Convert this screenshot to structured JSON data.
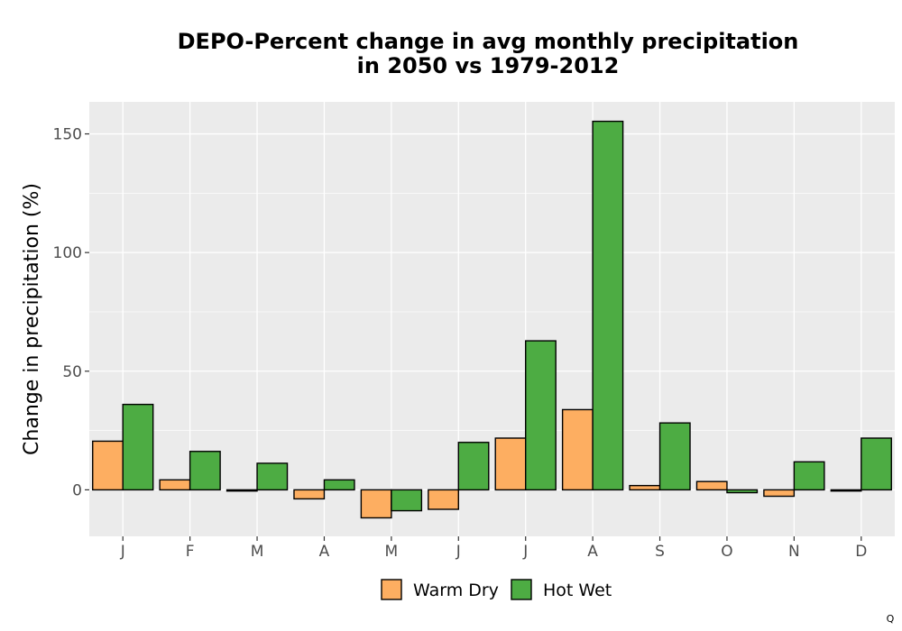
{
  "chart_data": {
    "type": "bar",
    "title_line1": "DEPO-Percent change in avg monthly precipitation",
    "title_line2": "in 2050 vs 1979-2012",
    "xlabel": "",
    "ylabel": "Change in precipitation (%)",
    "categories": [
      "J",
      "F",
      "M",
      "A",
      "M",
      "J",
      "J",
      "A",
      "S",
      "O",
      "N",
      "D"
    ],
    "series": [
      {
        "name": "Warm Dry",
        "color": "#FDAE61",
        "values": [
          20.5,
          4.2,
          -0.5,
          -3.8,
          -11.8,
          -8.2,
          21.8,
          33.8,
          1.8,
          3.5,
          -2.7,
          -0.5
        ]
      },
      {
        "name": "Hot Wet",
        "color": "#4DAC43",
        "values": [
          36.0,
          16.2,
          11.2,
          4.2,
          -8.8,
          20.0,
          62.8,
          155.3,
          28.2,
          -1.2,
          11.8,
          21.8
        ]
      }
    ],
    "ylim": [
      -19.6,
      163.5
    ],
    "yticks": [
      0,
      50,
      100,
      150
    ],
    "ytick_labels": [
      "0",
      "50",
      "100",
      "150"
    ],
    "grid": true,
    "panel_background": "#EBEBEB",
    "legend_position": "bottom"
  },
  "corner_mark": "Q"
}
